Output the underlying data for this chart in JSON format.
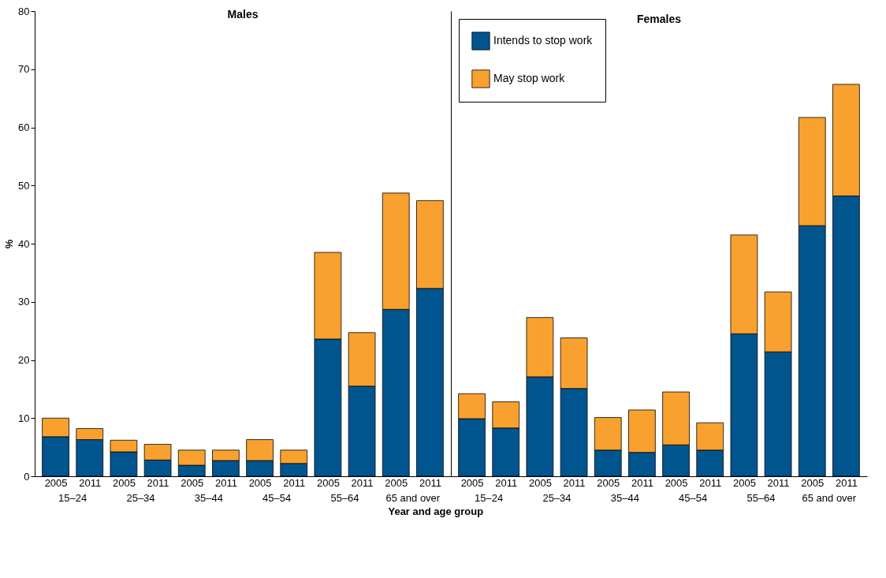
{
  "chart_data": [
    {
      "type": "bar",
      "title": "Males",
      "xlabel": "Year and age group",
      "ylabel": "%",
      "stacked": true,
      "categories": [
        "2005",
        "2011",
        "2005",
        "2011",
        "2005",
        "2011",
        "2005",
        "2011",
        "2005",
        "2011",
        "2005",
        "2011"
      ],
      "annotations": [
        "15–24",
        "25–34",
        "35–44",
        "45–54",
        "55–64",
        "65 and over"
      ],
      "series": [
        {
          "color": "#00558f",
          "values": [
            6.8,
            6.3,
            4.2,
            2.8,
            1.9,
            2.7,
            2.7,
            2.2,
            23.6,
            15.5,
            28.7,
            32.3
          ]
        },
        {
          "color": "#f9a12e",
          "values": [
            3.2,
            1.9,
            2.0,
            2.7,
            2.6,
            1.8,
            3.6,
            2.3,
            14.9,
            9.2,
            20.0,
            15.1
          ]
        }
      ],
      "ylim": [
        0,
        80
      ],
      "yticks": [
        0,
        10,
        20,
        30,
        40,
        50,
        60,
        70,
        80
      ],
      "grid": false,
      "legend": false
    },
    {
      "type": "bar",
      "title": "Females",
      "stacked": true,
      "categories": [
        "2005",
        "2011",
        "2005",
        "2011",
        "2005",
        "2011",
        "2005",
        "2011",
        "2005",
        "2011",
        "2005",
        "2011"
      ],
      "annotations": [
        "15–24",
        "25–34",
        "35–44",
        "45–54",
        "55–64",
        "65 and over"
      ],
      "series": [
        {
          "name": "Intends to stop work",
          "color": "#00558f",
          "values": [
            9.9,
            8.3,
            17.1,
            15.1,
            4.5,
            4.1,
            5.4,
            4.5,
            24.5,
            21.4,
            43.1,
            48.2
          ]
        },
        {
          "name": "May stop work",
          "color": "#f9a12e",
          "values": [
            4.3,
            4.5,
            10.2,
            8.7,
            5.6,
            7.3,
            9.1,
            4.7,
            17.0,
            10.3,
            18.6,
            19.2
          ]
        }
      ],
      "ylim": [
        0,
        80
      ],
      "yticks": [
        0,
        10,
        20,
        30,
        40,
        50,
        60,
        70,
        80
      ],
      "grid": false,
      "legend": "top left",
      "tick_labels": "x"
    }
  ]
}
